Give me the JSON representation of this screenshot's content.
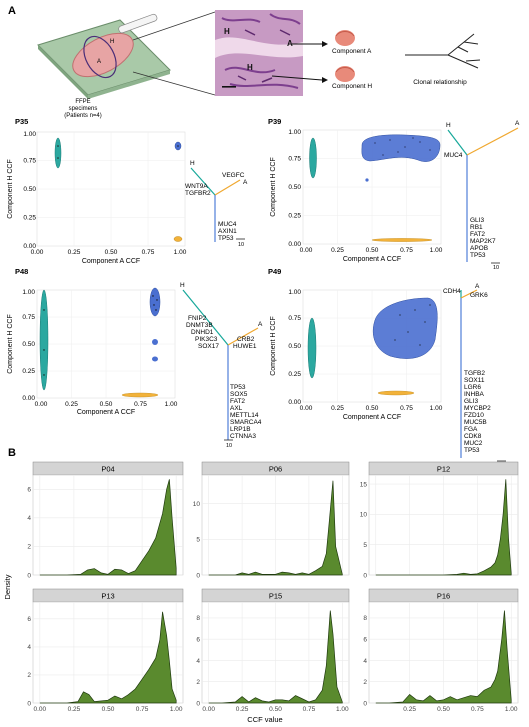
{
  "panel_a": {
    "letter": "A",
    "specimen": {
      "line1": "FFPE",
      "line2": "specimens",
      "line3": "(Patients n=4)"
    },
    "slide_marks": {
      "h": "H",
      "a": "A"
    },
    "histology_marks": {
      "h1": "H",
      "a": "A",
      "h2": "H"
    },
    "component_a": "Component A",
    "component_h": "Component H",
    "clonal": "Clonal relationship",
    "colors": {
      "teal": "#2ba8a0",
      "blue": "#4a6fd0",
      "orange": "#f2b23a",
      "tree_teal": "#17a89a",
      "tree_blue": "#4f7fd8",
      "tree_orange": "#f0a830"
    },
    "patients": [
      {
        "id": "P35",
        "xlabel": "Component A CCF",
        "ylabel": "Component H CCF",
        "x_ticks": [
          "0.00",
          "0.25",
          "0.50",
          "0.75",
          "1.00"
        ],
        "y_ticks": [
          "0.00",
          "0.25",
          "0.50",
          "0.75",
          "1.00"
        ],
        "tree": {
          "h_label": "H",
          "a_label": "A",
          "h_genes": [
            "WNT9A",
            "TGFBR2"
          ],
          "a_genes": [
            "VEGFC"
          ],
          "trunk_genes": [
            "MUC4",
            "AXIN1",
            "TP53"
          ],
          "scale": "10"
        }
      },
      {
        "id": "P39",
        "xlabel": "Component A CCF",
        "ylabel": "Component H CCF",
        "x_ticks": [
          "0.00",
          "0.25",
          "0.50",
          "0.75",
          "1.00"
        ],
        "y_ticks": [
          "0.00",
          "0.25",
          "0.50",
          "0.75",
          "1.00"
        ],
        "tree": {
          "h_label": "H",
          "a_label": "A",
          "h_genes": [
            "MUC4"
          ],
          "a_genes": [],
          "trunk_genes": [
            "GLI3",
            "RB1",
            "FAT2",
            "MAP2K7",
            "APOB",
            "TP53"
          ],
          "scale": "10"
        }
      },
      {
        "id": "P48",
        "xlabel": "Component A CCF",
        "ylabel": "Component H CCF",
        "x_ticks": [
          "0.00",
          "0.25",
          "0.50",
          "0.75",
          "1.00"
        ],
        "y_ticks": [
          "0.00",
          "0.25",
          "0.50",
          "0.75",
          "1.00"
        ],
        "tree": {
          "h_label": "H",
          "a_label": "A",
          "h_genes": [
            "FNIP2",
            "DNMT3B",
            "DNHD1",
            "PIK3C3",
            "SOX17"
          ],
          "a_genes": [
            "CRB2",
            "HUWE1"
          ],
          "trunk_genes": [
            "TP53",
            "SOX5",
            "FAT2",
            "AXL",
            "METTL14",
            "SMARCA4",
            "LRP1B",
            "CTNNA3"
          ],
          "scale": "10"
        }
      },
      {
        "id": "P49",
        "xlabel": "Component A CCF",
        "ylabel": "Component H CCF",
        "x_ticks": [
          "0.00",
          "0.25",
          "0.50",
          "0.75",
          "1.00"
        ],
        "y_ticks": [
          "0.00",
          "0.25",
          "0.50",
          "0.75",
          "1.00"
        ],
        "tree": {
          "h_label": "H",
          "a_label": "A",
          "h_genes": [
            "CDH4"
          ],
          "a_genes": [
            "GRK6"
          ],
          "trunk_genes": [
            "TGFB2",
            "SOX11",
            "LGR6",
            "INHBA",
            "GLI3",
            "MYCBP2",
            "FZD10",
            "MUC5B",
            "FGA",
            "CDK8",
            "MUC2",
            "TP53"
          ],
          "scale": "10"
        }
      }
    ]
  },
  "panel_b": {
    "letter": "B",
    "ylabel": "Density",
    "xlabel": "CCF value"
  },
  "chart_data": [
    {
      "type": "area",
      "title": "P04",
      "x_ticks": [
        "0.00",
        "0.25",
        "0.50",
        "0.75",
        "1.00"
      ],
      "y_ticks": [
        "0",
        "2",
        "4",
        "6"
      ],
      "ylim": [
        0,
        7
      ],
      "x": [
        0.0,
        0.1,
        0.2,
        0.3,
        0.35,
        0.4,
        0.45,
        0.5,
        0.55,
        0.6,
        0.65,
        0.7,
        0.75,
        0.8,
        0.85,
        0.9,
        0.93,
        0.95,
        0.97,
        1.0
      ],
      "values": [
        0,
        0,
        0,
        0.05,
        0.35,
        0.45,
        0.15,
        0.05,
        0.4,
        0.35,
        0.1,
        0.3,
        1.0,
        1.7,
        2.6,
        4.3,
        6.0,
        6.7,
        4.0,
        0.5
      ]
    },
    {
      "type": "area",
      "title": "P06",
      "x_ticks": [
        "0.00",
        "0.25",
        "0.50",
        "0.75",
        "1.00"
      ],
      "y_ticks": [
        "0",
        "5",
        "10"
      ],
      "ylim": [
        0,
        14
      ],
      "x": [
        0.0,
        0.1,
        0.2,
        0.25,
        0.3,
        0.35,
        0.4,
        0.5,
        0.55,
        0.6,
        0.65,
        0.7,
        0.75,
        0.8,
        0.85,
        0.88,
        0.9,
        0.93,
        0.95,
        1.0
      ],
      "values": [
        0,
        0,
        0,
        0.3,
        0.1,
        0.4,
        0.1,
        0.1,
        0.4,
        0.3,
        0.1,
        0.3,
        0.1,
        0.6,
        1.2,
        3.0,
        7.0,
        13.2,
        4.0,
        0.1
      ]
    },
    {
      "type": "area",
      "title": "P12",
      "x_ticks": [
        "0.00",
        "0.25",
        "0.50",
        "0.75",
        "1.00"
      ],
      "y_ticks": [
        "0",
        "5",
        "10",
        "15"
      ],
      "ylim": [
        0,
        16.5
      ],
      "x": [
        0.0,
        0.1,
        0.2,
        0.3,
        0.4,
        0.5,
        0.6,
        0.65,
        0.7,
        0.75,
        0.8,
        0.85,
        0.88,
        0.9,
        0.92,
        0.94,
        0.96,
        0.98,
        1.0
      ],
      "values": [
        0,
        0,
        0,
        0,
        0,
        0,
        0.1,
        0.3,
        0.1,
        0.2,
        0.7,
        1.3,
        2.0,
        3.3,
        6.0,
        10.0,
        15.8,
        6.0,
        0.3
      ]
    },
    {
      "type": "area",
      "title": "P13",
      "x_ticks": [
        "0.00",
        "0.25",
        "0.50",
        "0.75",
        "1.00"
      ],
      "y_ticks": [
        "0",
        "2",
        "4",
        "6"
      ],
      "ylim": [
        0,
        7.2
      ],
      "x": [
        0.0,
        0.2,
        0.28,
        0.32,
        0.36,
        0.4,
        0.5,
        0.55,
        0.6,
        0.65,
        0.7,
        0.75,
        0.8,
        0.85,
        0.88,
        0.9,
        0.93,
        0.95,
        0.97,
        1.0
      ],
      "values": [
        0,
        0,
        0.1,
        0.8,
        0.6,
        0.1,
        0.2,
        0.5,
        0.3,
        0.6,
        1.0,
        1.7,
        2.4,
        3.2,
        4.5,
        6.5,
        4.8,
        3.0,
        1.0,
        0.2
      ]
    },
    {
      "type": "area",
      "title": "P15",
      "x_ticks": [
        "0.00",
        "0.25",
        "0.50",
        "0.75",
        "1.00"
      ],
      "y_ticks": [
        "0",
        "2",
        "4",
        "6",
        "8"
      ],
      "ylim": [
        0,
        9.5
      ],
      "x": [
        0.0,
        0.1,
        0.2,
        0.25,
        0.3,
        0.35,
        0.4,
        0.45,
        0.5,
        0.55,
        0.6,
        0.65,
        0.7,
        0.75,
        0.8,
        0.85,
        0.88,
        0.91,
        0.93,
        0.96,
        1.0
      ],
      "values": [
        0,
        0,
        0.1,
        0.6,
        0.1,
        0.5,
        0.2,
        0.1,
        0.3,
        0.3,
        0.2,
        0.7,
        0.4,
        0.1,
        0.3,
        1.2,
        3.5,
        8.7,
        6.5,
        1.5,
        0.1
      ]
    },
    {
      "type": "area",
      "title": "P16",
      "x_ticks": [
        "0.25",
        "0.50",
        "0.75",
        "1.00"
      ],
      "y_ticks": [
        "0",
        "2",
        "4",
        "6",
        "8"
      ],
      "ylim": [
        0,
        9.5
      ],
      "x": [
        0.0,
        0.1,
        0.2,
        0.25,
        0.3,
        0.35,
        0.4,
        0.45,
        0.5,
        0.55,
        0.6,
        0.7,
        0.75,
        0.8,
        0.85,
        0.88,
        0.9,
        0.93,
        0.95,
        0.97,
        1.0
      ],
      "values": [
        0,
        0,
        0.1,
        0.8,
        0.3,
        0.2,
        0.7,
        0.2,
        0.3,
        0.6,
        0.3,
        0.7,
        0.6,
        1.2,
        1.5,
        2.2,
        3.0,
        6.0,
        8.7,
        5.0,
        0.3
      ]
    }
  ]
}
